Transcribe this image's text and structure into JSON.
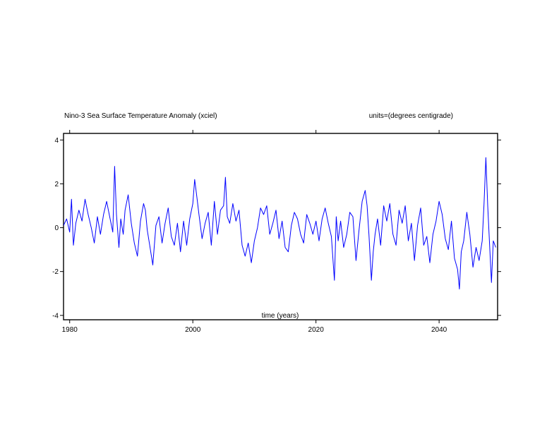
{
  "chart_data": {
    "type": "line",
    "title": "Nino-3 Sea Surface Temperature Anomaly (xciel)",
    "units_label": "units=(degrees centigrade)",
    "xlabel": "time (years)",
    "ylabel": "",
    "xlim": [
      1979.0,
      2049.5
    ],
    "ylim": [
      -4.2,
      4.3
    ],
    "x_ticks": [
      1980,
      2000,
      2020,
      2040
    ],
    "x_tick_labels": [
      "1980",
      "2000",
      "2020",
      "2040"
    ],
    "y_ticks": [
      4,
      2,
      0,
      -2,
      -4
    ],
    "y_tick_labels": [
      "4",
      "2",
      "0",
      "-2",
      "-4"
    ],
    "grid": false,
    "line_color": "#0000ff",
    "series": [
      {
        "name": "",
        "x": [
          1979.0,
          1979.5,
          1980.0,
          1980.3,
          1980.6,
          1981.0,
          1981.5,
          1982.0,
          1982.5,
          1983.0,
          1983.5,
          1984.0,
          1984.5,
          1985.0,
          1985.5,
          1986.0,
          1986.5,
          1987.0,
          1987.3,
          1987.6,
          1988.0,
          1988.3,
          1988.7,
          1989.0,
          1989.5,
          1990.0,
          1990.5,
          1991.0,
          1991.5,
          1992.0,
          1992.3,
          1992.6,
          1993.0,
          1993.5,
          1994.0,
          1994.5,
          1995.0,
          1995.5,
          1996.0,
          1996.5,
          1997.0,
          1997.5,
          1998.0,
          1998.5,
          1999.0,
          1999.5,
          2000.0,
          2000.3,
          2000.7,
          2001.0,
          2001.5,
          2002.0,
          2002.5,
          2003.0,
          2003.5,
          2004.0,
          2004.5,
          2005.0,
          2005.3,
          2005.6,
          2006.0,
          2006.5,
          2007.0,
          2007.5,
          2008.0,
          2008.5,
          2009.0,
          2009.5,
          2010.0,
          2010.5,
          2011.0,
          2011.5,
          2012.0,
          2012.5,
          2013.0,
          2013.5,
          2014.0,
          2014.5,
          2015.0,
          2015.5,
          2016.0,
          2016.5,
          2017.0,
          2017.5,
          2018.0,
          2018.5,
          2019.0,
          2019.5,
          2020.0,
          2020.5,
          2021.0,
          2021.5,
          2022.0,
          2022.5,
          2023.0,
          2023.3,
          2023.6,
          2024.0,
          2024.5,
          2025.0,
          2025.5,
          2026.0,
          2026.5,
          2027.0,
          2027.5,
          2028.0,
          2028.3,
          2028.6,
          2029.0,
          2029.3,
          2029.6,
          2030.0,
          2030.5,
          2031.0,
          2031.5,
          2032.0,
          2032.5,
          2033.0,
          2033.5,
          2034.0,
          2034.5,
          2035.0,
          2035.5,
          2036.0,
          2036.5,
          2037.0,
          2037.5,
          2038.0,
          2038.5,
          2039.0,
          2039.5,
          2040.0,
          2040.5,
          2041.0,
          2041.5,
          2042.0,
          2042.5,
          2043.0,
          2043.3,
          2043.6,
          2044.0,
          2044.5,
          2045.0,
          2045.5,
          2046.0,
          2046.5,
          2047.0,
          2047.3,
          2047.6,
          2047.9,
          2048.2,
          2048.5,
          2048.8,
          2049.2
        ],
        "values": [
          0.1,
          0.4,
          -0.2,
          1.3,
          -0.8,
          0.2,
          0.8,
          0.3,
          1.3,
          0.6,
          0.0,
          -0.7,
          0.5,
          -0.3,
          0.6,
          1.2,
          0.5,
          -0.2,
          2.8,
          0.6,
          -0.9,
          0.4,
          -0.3,
          0.8,
          1.5,
          0.2,
          -0.7,
          -1.3,
          0.3,
          1.1,
          0.8,
          -0.1,
          -0.8,
          -1.7,
          0.1,
          0.5,
          -0.7,
          0.2,
          0.9,
          -0.4,
          -0.8,
          0.2,
          -1.1,
          0.3,
          -0.8,
          0.4,
          1.1,
          2.2,
          1.3,
          0.6,
          -0.5,
          0.2,
          0.7,
          -0.8,
          1.2,
          -0.3,
          0.8,
          1.0,
          2.3,
          0.5,
          0.2,
          1.1,
          0.3,
          0.8,
          -0.8,
          -1.3,
          -0.7,
          -1.6,
          -0.6,
          0.0,
          0.9,
          0.6,
          1.0,
          -0.3,
          0.2,
          0.8,
          -0.5,
          0.3,
          -0.9,
          -1.1,
          0.1,
          0.7,
          0.4,
          -0.3,
          -0.7,
          0.6,
          0.2,
          -0.3,
          0.3,
          -0.6,
          0.4,
          0.9,
          0.2,
          -0.4,
          -2.4,
          0.5,
          -0.6,
          0.3,
          -0.9,
          -0.3,
          0.7,
          0.5,
          -1.5,
          -0.1,
          1.2,
          1.7,
          1.0,
          -0.3,
          -2.4,
          -1.1,
          -0.3,
          0.4,
          -0.8,
          1.0,
          0.3,
          1.1,
          -0.3,
          -0.8,
          0.8,
          0.2,
          1.0,
          -0.6,
          0.2,
          -1.5,
          0.1,
          0.9,
          -0.8,
          -0.4,
          -1.6,
          -0.3,
          0.3,
          1.2,
          0.6,
          -0.5,
          -1.0,
          0.3,
          -1.4,
          -1.9,
          -2.8,
          -1.1,
          -0.6,
          0.7,
          -0.3,
          -1.8,
          -0.9,
          -1.5,
          -0.6,
          1.1,
          3.2,
          1.0,
          -0.8,
          -2.5,
          -0.6,
          -0.9
        ]
      }
    ]
  }
}
